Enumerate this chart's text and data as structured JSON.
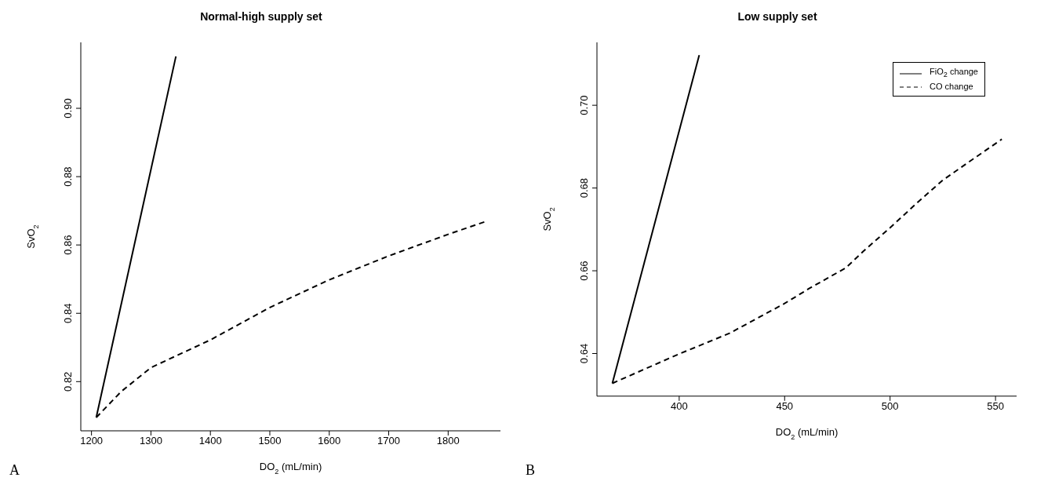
{
  "chart_data": [
    {
      "type": "line",
      "title": "Normal-high supply set",
      "xlabel": "DO$_{2}$ (mL/min)",
      "ylabel": "SvO$_{2}$",
      "annotations": [
        "A"
      ],
      "xlim": [
        1182,
        1888
      ],
      "xticks": [
        1200,
        1300,
        1400,
        1500,
        1600,
        1700,
        1800
      ],
      "ylim": [
        0.8056,
        0.9193
      ],
      "yticks": [
        0.82,
        0.84,
        0.86,
        0.88,
        {
          "value": 0.9,
          "label": "0.90"
        }
      ],
      "series": [
        {
          "color": "#000000",
          "line_style": "solid",
          "x": [
            1208,
            1342
          ],
          "values": [
            0.8095,
            0.9152
          ]
        },
        {
          "color": "#000000",
          "line_style": "dashed",
          "x": [
            1208,
            1250,
            1300,
            1400,
            1500,
            1600,
            1700,
            1800,
            1862
          ],
          "values": [
            0.8095,
            0.8171,
            0.8241,
            0.8322,
            0.8417,
            0.8498,
            0.8568,
            0.8631,
            0.8668
          ]
        }
      ]
    },
    {
      "type": "line",
      "title": "Low supply set",
      "xlabel": "DO$_{2}$ (mL/min)",
      "ylabel": "SvO$_{2}$",
      "annotations": [
        "B"
      ],
      "legend": "top right",
      "xlim": [
        361,
        560
      ],
      "xticks": [
        400,
        450,
        500,
        550
      ],
      "ylim": [
        0.6297,
        0.7152
      ],
      "yticks": [
        0.64,
        0.66,
        0.68,
        {
          "value": 0.7,
          "label": "0.70"
        }
      ],
      "series": [
        {
          "name": "FiO$_{2}$ change",
          "color": "#000000",
          "line_style": "solid",
          "x": [
            368.3,
            409.5
          ],
          "values": [
            0.6328,
            0.7121
          ]
        },
        {
          "name": "CO change",
          "color": "#000000",
          "line_style": "dashed",
          "x": [
            368.3,
            400,
            423.9,
            450,
            461.6,
            479,
            487.3,
            500,
            513,
            525,
            537.1,
            553
          ],
          "values": [
            0.6328,
            0.6399,
            0.6449,
            0.6521,
            0.6557,
            0.6607,
            0.6647,
            0.6704,
            0.6765,
            0.6819,
            0.6862,
            0.6918
          ]
        }
      ]
    }
  ]
}
